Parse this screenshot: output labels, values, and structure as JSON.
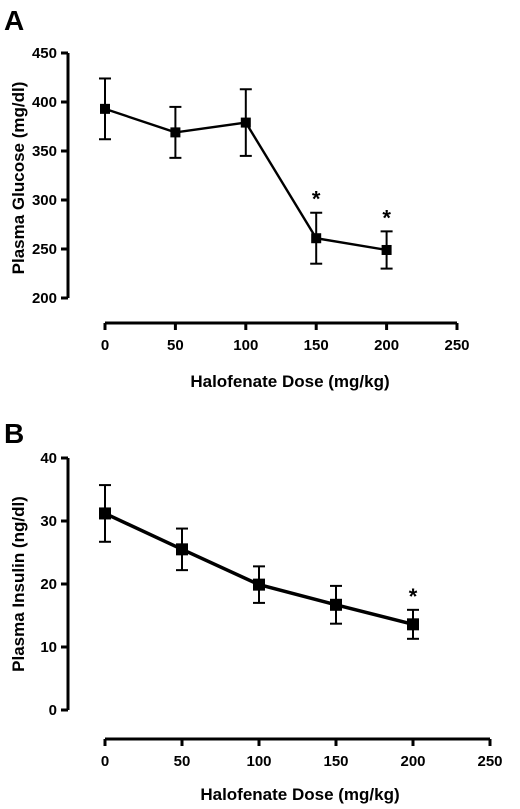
{
  "chart_data": [
    {
      "panel": "A",
      "type": "line",
      "xlabel": "Halofenate Dose (mg/kg)",
      "ylabel": "Plasma Glucose (mg/dl)",
      "xlim": [
        0,
        250
      ],
      "ylim": [
        200,
        450
      ],
      "xticks": [
        0,
        50,
        100,
        150,
        200,
        250
      ],
      "yticks": [
        200,
        250,
        300,
        350,
        400,
        450
      ],
      "grid": false,
      "x": [
        0,
        50,
        100,
        150,
        200
      ],
      "series": [
        {
          "values": [
            393,
            369,
            379,
            261,
            249
          ],
          "error": [
            31,
            26,
            34,
            26,
            19
          ],
          "significance": [
            "",
            "",
            "",
            "*",
            "*"
          ]
        }
      ]
    },
    {
      "panel": "B",
      "type": "line",
      "xlabel": "Halofenate Dose (mg/kg)",
      "ylabel": "Plasma Insulin (ng/dl)",
      "xlim": [
        0,
        250
      ],
      "ylim": [
        0,
        40
      ],
      "xticks": [
        0,
        50,
        100,
        150,
        200,
        250
      ],
      "yticks": [
        0,
        10,
        20,
        30,
        40
      ],
      "grid": false,
      "x": [
        0,
        50,
        100,
        150,
        200
      ],
      "series": [
        {
          "values": [
            31.2,
            25.5,
            19.9,
            16.7,
            13.6
          ],
          "error": [
            4.5,
            3.3,
            2.9,
            3.0,
            2.3
          ],
          "significance": [
            "",
            "",
            "",
            "",
            "*"
          ]
        }
      ]
    }
  ]
}
